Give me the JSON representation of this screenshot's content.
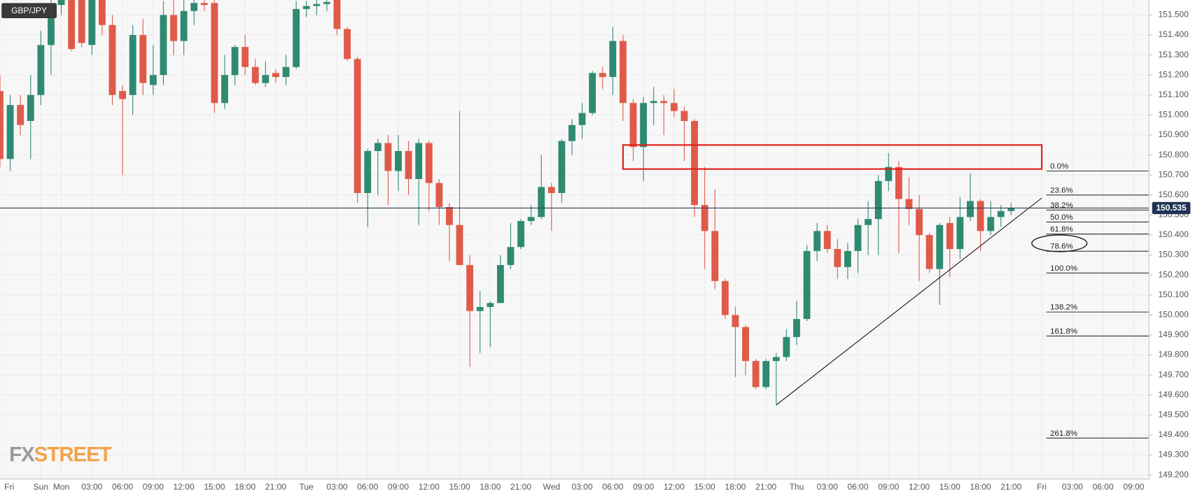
{
  "chart_data": {
    "type": "candlestick",
    "title": "GBP/JPY",
    "logo": [
      "FX",
      "STREET"
    ],
    "categories": [
      "Fri",
      null,
      null,
      null,
      "Sun",
      null,
      "Mon",
      null,
      null,
      "03:00",
      null,
      null,
      "06:00",
      null,
      null,
      "09:00",
      null,
      null,
      "12:00",
      null,
      null,
      "15:00",
      null,
      null,
      "18:00",
      null,
      null,
      "21:00",
      null,
      null,
      "Tue",
      null,
      null,
      "03:00",
      null,
      null,
      "06:00",
      null,
      null,
      "09:00",
      null,
      null,
      "12:00",
      null,
      null,
      "15:00",
      null,
      null,
      "18:00",
      null,
      null,
      "21:00",
      null,
      null,
      "Wed",
      null,
      null,
      "03:00",
      null,
      null,
      "06:00",
      null,
      null,
      "09:00",
      null,
      null,
      "12:00",
      null,
      null,
      "15:00",
      null,
      null,
      "18:00",
      null,
      null,
      "21:00",
      null,
      null,
      "Thu",
      null,
      null,
      "03:00",
      null,
      null,
      "06:00",
      null,
      null,
      "09:00",
      null,
      null,
      "12:00",
      null,
      null,
      "15:00",
      null,
      null,
      "18:00",
      null,
      null,
      "21:00",
      null,
      null,
      "Fri",
      null,
      null,
      "03:00",
      null,
      null,
      "06:00",
      null,
      null,
      "09:00"
    ],
    "open": [
      151.12,
      150.78,
      151.05,
      150.97,
      151.1,
      151.35,
      151.55,
      151.65,
      151.62,
      151.35,
      151.7,
      151.45,
      151.12,
      151.1,
      151.4,
      151.15,
      151.2,
      151.5,
      151.37,
      151.52,
      151.56,
      151.56,
      151.06,
      151.2,
      151.34,
      151.24,
      151.16,
      151.21,
      151.19,
      151.24,
      151.53,
      151.545,
      151.555,
      151.58,
      151.43,
      151.28,
      150.61,
      150.82,
      150.86,
      150.72,
      150.82,
      150.68,
      150.86,
      150.66,
      150.54,
      150.45,
      150.25,
      150.02,
      150.04,
      150.06,
      150.25,
      150.34,
      150.47,
      150.49,
      150.64,
      150.61,
      150.87,
      150.95,
      151.01,
      151.21,
      151.19,
      151.37,
      151.06,
      150.84,
      151.06,
      151.07,
      151.06,
      151.02,
      150.97,
      150.55,
      150.42,
      150.17,
      150.0,
      149.94,
      149.77,
      149.64,
      149.77,
      149.79,
      149.89,
      149.98,
      150.32,
      150.42,
      150.33,
      150.24,
      150.32,
      150.45,
      150.48,
      150.67,
      150.74,
      150.58,
      150.53,
      150.4,
      150.23,
      150.46,
      150.33,
      150.49,
      150.57,
      150.42,
      150.49,
      150.52,
      null,
      null,
      null,
      null,
      null,
      null,
      null,
      null,
      null,
      null,
      null,
      null
    ],
    "high": [
      151.2,
      151.1,
      151.1,
      151.2,
      151.42,
      151.6,
      151.6,
      151.7,
      151.65,
      151.65,
      151.75,
      151.5,
      151.15,
      151.45,
      151.48,
      151.35,
      151.57,
      151.58,
      151.6,
      151.6,
      151.58,
      151.6,
      151.3,
      151.35,
      151.4,
      151.28,
      151.27,
      151.23,
      151.3,
      151.57,
      151.57,
      151.58,
      151.59,
      151.6,
      151.44,
      151.29,
      150.83,
      150.88,
      150.9,
      150.9,
      150.87,
      150.88,
      150.87,
      150.68,
      150.56,
      151.02,
      150.3,
      150.12,
      150.07,
      150.3,
      150.46,
      150.48,
      150.55,
      150.8,
      150.66,
      150.88,
      150.98,
      151.06,
      151.22,
      151.24,
      151.44,
      151.4,
      151.08,
      151.09,
      151.14,
      151.1,
      151.13,
      151.04,
      150.98,
      150.74,
      150.63,
      150.18,
      150.04,
      149.95,
      149.78,
      149.78,
      149.81,
      149.93,
      150.07,
      150.35,
      150.46,
      150.45,
      150.38,
      150.36,
      150.48,
      150.57,
      150.7,
      150.81,
      150.77,
      150.69,
      150.6,
      150.41,
      150.46,
      150.49,
      150.59,
      150.71,
      150.58,
      150.57,
      150.55,
      150.56,
      null,
      null,
      null,
      null,
      null,
      null,
      null,
      null,
      null,
      null,
      null,
      null
    ],
    "low": [
      150.74,
      150.72,
      150.9,
      150.78,
      151.05,
      151.2,
      151.5,
      151.32,
      151.34,
      151.3,
      151.4,
      151.05,
      150.7,
      151.0,
      151.1,
      151.1,
      151.15,
      151.3,
      151.3,
      151.45,
      151.52,
      151.01,
      151.03,
      151.15,
      151.2,
      151.15,
      151.14,
      151.16,
      151.15,
      151.23,
      151.49,
      151.5,
      151.52,
      151.4,
      151.27,
      150.56,
      150.44,
      150.6,
      150.55,
      150.62,
      150.6,
      150.45,
      150.52,
      150.45,
      150.27,
      150.25,
      149.74,
      149.81,
      149.84,
      150.06,
      150.23,
      150.33,
      150.45,
      150.48,
      150.42,
      150.56,
      150.8,
      150.88,
      151.0,
      151.13,
      151.1,
      150.97,
      150.77,
      150.67,
      150.95,
      150.9,
      150.99,
      150.77,
      150.49,
      150.23,
      150.13,
      149.98,
      149.69,
      149.7,
      149.63,
      149.63,
      149.55,
      149.77,
      149.85,
      149.97,
      150.27,
      150.31,
      150.18,
      150.18,
      150.21,
      150.3,
      150.3,
      150.62,
      150.31,
      150.45,
      150.17,
      150.21,
      150.05,
      150.19,
      150.28,
      150.47,
      150.32,
      150.4,
      150.44,
      150.5,
      null,
      null,
      null,
      null,
      null,
      null,
      null,
      null,
      null,
      null,
      null,
      null
    ],
    "close": [
      150.78,
      151.05,
      150.95,
      151.1,
      151.35,
      151.55,
      151.58,
      151.33,
      151.36,
      151.62,
      151.45,
      151.1,
      151.08,
      151.4,
      151.16,
      151.2,
      151.5,
      151.37,
      151.52,
      151.56,
      151.55,
      151.06,
      151.2,
      151.34,
      151.24,
      151.16,
      151.2,
      151.19,
      151.24,
      151.53,
      151.545,
      151.555,
      151.565,
      151.43,
      151.28,
      150.61,
      150.82,
      150.86,
      150.72,
      150.82,
      150.68,
      150.86,
      150.66,
      150.54,
      150.45,
      150.25,
      150.02,
      150.04,
      150.06,
      150.25,
      150.34,
      150.47,
      150.49,
      150.64,
      150.61,
      150.87,
      150.95,
      151.01,
      151.21,
      151.19,
      151.37,
      151.06,
      150.84,
      151.06,
      151.07,
      151.06,
      151.02,
      150.97,
      150.55,
      150.42,
      150.17,
      150.0,
      149.94,
      149.77,
      149.64,
      149.77,
      149.79,
      149.89,
      149.98,
      150.32,
      150.42,
      150.33,
      150.24,
      150.32,
      150.45,
      150.48,
      150.67,
      150.74,
      150.58,
      150.53,
      150.4,
      150.23,
      150.45,
      150.33,
      150.49,
      150.57,
      150.42,
      150.49,
      150.52,
      150.535,
      null,
      null,
      null,
      null,
      null,
      null,
      null,
      null,
      null,
      null,
      null,
      null
    ],
    "up_color": "#2f8a72",
    "down_color": "#e05a4a",
    "ylim": [
      149.18,
      151.575
    ],
    "yticks": [
      {
        "value": 149.2,
        "label": "149.200"
      },
      {
        "value": 149.3,
        "label": "149.300"
      },
      {
        "value": 149.4,
        "label": "149.400"
      },
      {
        "value": 149.5,
        "label": "149.500"
      },
      {
        "value": 149.6,
        "label": "149.600"
      },
      {
        "value": 149.7,
        "label": "149.700"
      },
      {
        "value": 149.8,
        "label": "149.800"
      },
      {
        "value": 149.9,
        "label": "149.900"
      },
      {
        "value": 150.0,
        "label": "150.000"
      },
      {
        "value": 150.1,
        "label": "150.100"
      },
      {
        "value": 150.2,
        "label": "150.200"
      },
      {
        "value": 150.3,
        "label": "150.300"
      },
      {
        "value": 150.4,
        "label": "150.400"
      },
      {
        "value": 150.5,
        "label": "150.500"
      },
      {
        "value": 150.6,
        "label": "150.600"
      },
      {
        "value": 150.7,
        "label": "150.700"
      },
      {
        "value": 150.8,
        "label": "150.800"
      },
      {
        "value": 150.9,
        "label": "150.900"
      },
      {
        "value": 151.0,
        "label": "151.000"
      },
      {
        "value": 151.1,
        "label": "151.100"
      },
      {
        "value": 151.2,
        "label": "151.200"
      },
      {
        "value": 151.3,
        "label": "151.300"
      },
      {
        "value": 151.4,
        "label": "151.400"
      },
      {
        "value": 151.5,
        "label": "151.500"
      }
    ],
    "grid": true,
    "last_price": 150.535,
    "fib_levels": [
      {
        "price": 150.72,
        "label": "0.0%"
      },
      {
        "price": 150.6,
        "label": "23.6%"
      },
      {
        "price": 150.525,
        "label": "38.2%"
      },
      {
        "price": 150.465,
        "label": "50.0%"
      },
      {
        "price": 150.405,
        "label": "61.8%"
      },
      {
        "price": 150.319,
        "label": "78.6%"
      },
      {
        "price": 150.21,
        "label": "100.0%"
      },
      {
        "price": 150.015,
        "label": "138.2%"
      },
      {
        "price": 149.895,
        "label": "161.8%"
      },
      {
        "price": 149.385,
        "label": "261.8%"
      }
    ],
    "zone": {
      "high": 150.85,
      "low": 150.73,
      "x_index": [
        61,
        102
      ]
    },
    "trendline": {
      "x_index": [
        76,
        102
      ],
      "y": [
        149.55,
        150.585
      ]
    }
  }
}
